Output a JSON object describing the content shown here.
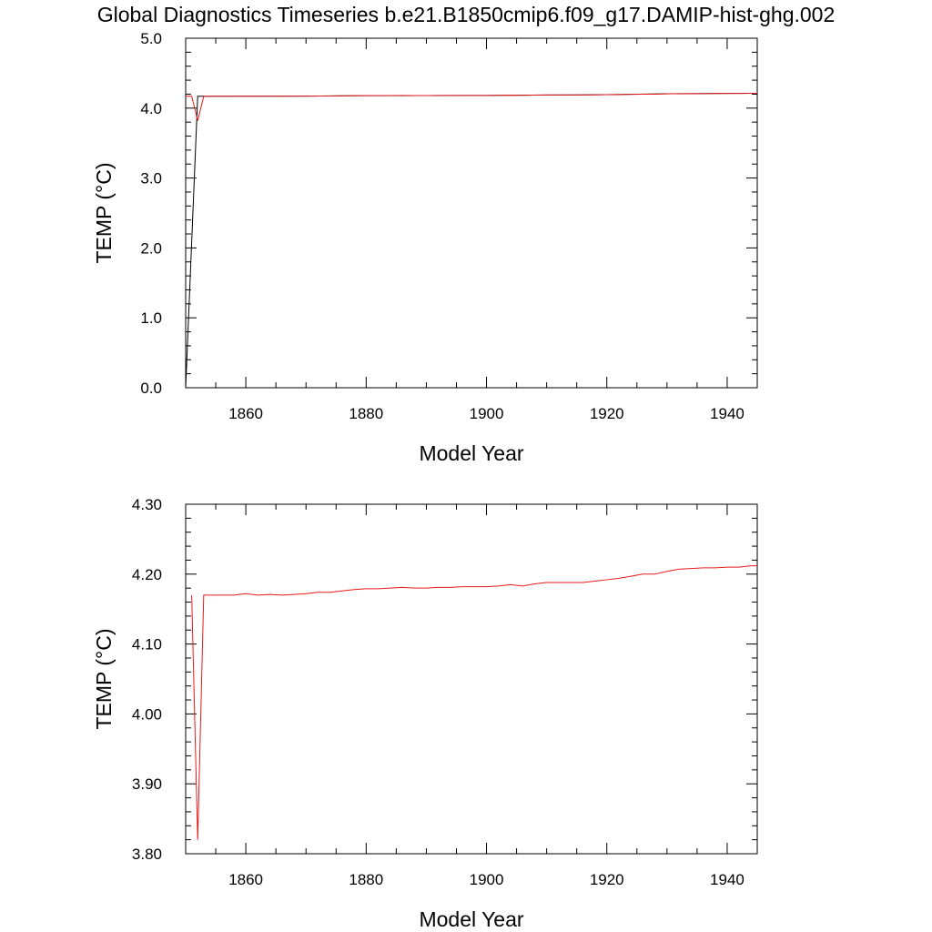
{
  "title": "Global Diagnostics Timeseries b.e21.B1850cmip6.f09_g17.DAMIP-hist-ghg.002",
  "colors": {
    "series_black": "#000000",
    "series_red": "#e8191c"
  },
  "chart_data": [
    {
      "type": "line",
      "xlabel": "Model Year",
      "ylabel": "TEMP (°C)",
      "xlim": [
        1850,
        1945
      ],
      "ylim": [
        0.0,
        5.0
      ],
      "xticks": [
        1860,
        1880,
        1900,
        1920,
        1940
      ],
      "xtick_labels": [
        "1860",
        "1880",
        "1900",
        "1920",
        "1940"
      ],
      "yticks": [
        0,
        1,
        2,
        3,
        4,
        5
      ],
      "ytick_labels": [
        "0.0",
        "1.0",
        "2.0",
        "3.0",
        "4.0",
        "5.0"
      ],
      "grid": false,
      "series": [
        {
          "color": "#000000",
          "x": [
            1850,
            1852,
            1853,
            1860,
            1870,
            1880,
            1890,
            1900,
            1910,
            1920,
            1930,
            1940,
            1945
          ],
          "y": [
            0.0,
            4.17,
            4.17,
            4.17,
            4.172,
            4.178,
            4.18,
            4.182,
            4.188,
            4.192,
            4.205,
            4.21,
            4.212
          ]
        },
        {
          "color": "#e8191c",
          "x": [
            1850,
            1851,
            1852,
            1853,
            1855,
            1858,
            1860,
            1862,
            1864,
            1866,
            1868,
            1870,
            1872,
            1874,
            1876,
            1878,
            1880,
            1882,
            1884,
            1886,
            1888,
            1890,
            1892,
            1894,
            1896,
            1898,
            1900,
            1902,
            1904,
            1906,
            1908,
            1910,
            1912,
            1914,
            1916,
            1918,
            1920,
            1922,
            1924,
            1926,
            1928,
            1930,
            1932,
            1934,
            1936,
            1938,
            1940,
            1942,
            1944,
            1945
          ],
          "y": [
            4.17,
            4.17,
            3.82,
            4.17,
            4.17,
            4.17,
            4.172,
            4.17,
            4.171,
            4.17,
            4.171,
            4.172,
            4.174,
            4.174,
            4.176,
            4.178,
            4.179,
            4.179,
            4.18,
            4.181,
            4.18,
            4.18,
            4.181,
            4.181,
            4.182,
            4.182,
            4.182,
            4.183,
            4.185,
            4.183,
            4.186,
            4.188,
            4.188,
            4.188,
            4.188,
            4.19,
            4.192,
            4.194,
            4.197,
            4.2,
            4.2,
            4.204,
            4.207,
            4.208,
            4.209,
            4.209,
            4.21,
            4.21,
            4.212,
            4.212
          ]
        }
      ]
    },
    {
      "type": "line",
      "xlabel": "Model Year",
      "ylabel": "TEMP (°C)",
      "xlim": [
        1850,
        1945
      ],
      "ylim": [
        3.8,
        4.3
      ],
      "xticks": [
        1860,
        1880,
        1900,
        1920,
        1940
      ],
      "xtick_labels": [
        "1860",
        "1880",
        "1900",
        "1920",
        "1940"
      ],
      "yticks": [
        3.8,
        3.9,
        4.0,
        4.1,
        4.2,
        4.3
      ],
      "ytick_labels": [
        "3.80",
        "3.90",
        "4.00",
        "4.10",
        "4.20",
        "4.30"
      ],
      "grid": false,
      "series": [
        {
          "color": "#e8191c",
          "x": [
            1851,
            1852,
            1853,
            1855,
            1858,
            1860,
            1862,
            1864,
            1866,
            1868,
            1870,
            1872,
            1874,
            1876,
            1878,
            1880,
            1882,
            1884,
            1886,
            1888,
            1890,
            1892,
            1894,
            1896,
            1898,
            1900,
            1902,
            1904,
            1906,
            1908,
            1910,
            1912,
            1914,
            1916,
            1918,
            1920,
            1922,
            1924,
            1926,
            1928,
            1930,
            1932,
            1934,
            1936,
            1938,
            1940,
            1942,
            1944,
            1945
          ],
          "y": [
            4.17,
            3.82,
            4.17,
            4.17,
            4.17,
            4.172,
            4.17,
            4.171,
            4.17,
            4.171,
            4.172,
            4.174,
            4.174,
            4.176,
            4.178,
            4.179,
            4.179,
            4.18,
            4.181,
            4.18,
            4.18,
            4.181,
            4.181,
            4.182,
            4.182,
            4.182,
            4.183,
            4.185,
            4.183,
            4.186,
            4.188,
            4.188,
            4.188,
            4.188,
            4.19,
            4.192,
            4.194,
            4.197,
            4.2,
            4.2,
            4.204,
            4.207,
            4.208,
            4.209,
            4.209,
            4.21,
            4.21,
            4.212,
            4.212
          ]
        }
      ]
    }
  ]
}
